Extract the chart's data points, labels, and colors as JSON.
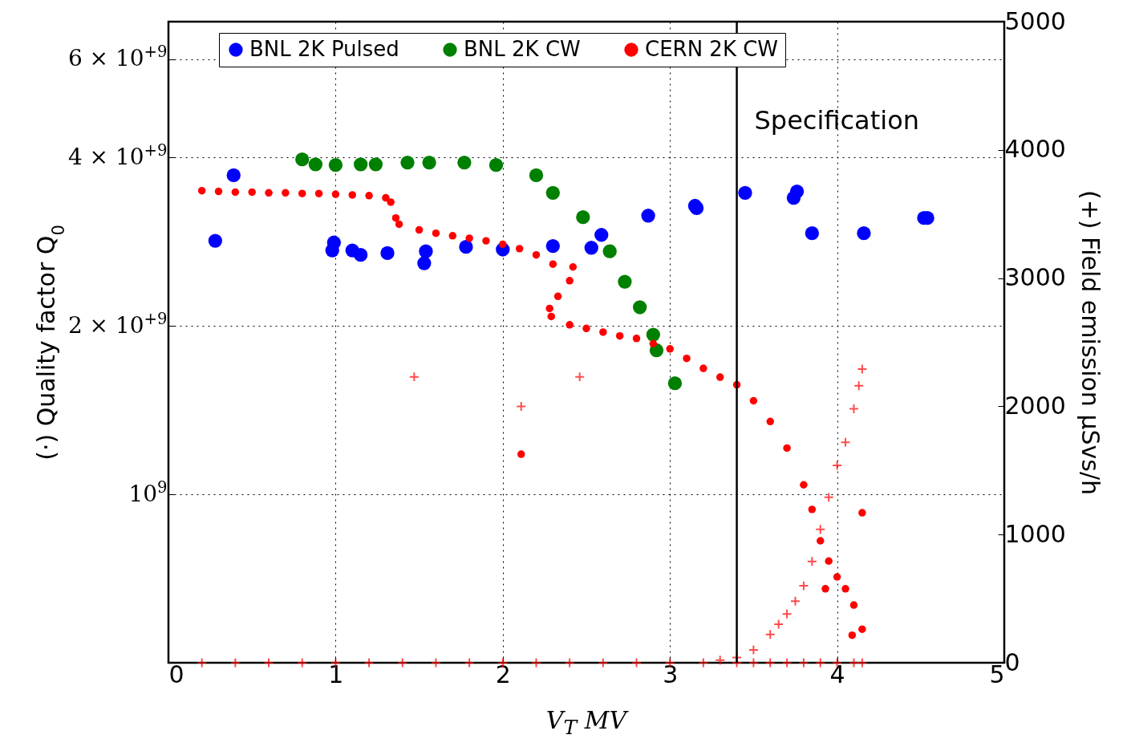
{
  "chart_data": {
    "type": "scatter",
    "xlabel": "V$_{T}$  MV",
    "ylabel": "(·) Quality factor Q$_{0}$",
    "y2label": "(+) Field emission μSvs/h",
    "log": "y",
    "grid": true,
    "legend": "top",
    "marker": "circle",
    "xlim": [
      0,
      5
    ],
    "xticks": [
      0,
      1,
      2,
      3,
      4,
      5
    ],
    "ylim": [
      500000000,
      7000000000
    ],
    "yticks": [
      {
        "value": 1000000000,
        "label": "10$^{9}$"
      },
      {
        "value": 2000000000,
        "label": "2 × 10$^{+9}$"
      },
      {
        "value": 4000000000,
        "label": "4 × 10$^{+9}$"
      },
      {
        "value": 6000000000,
        "label": "6 × 10$^{+9}$"
      }
    ],
    "y2lim": [
      0,
      5000
    ],
    "y2ticks": [
      0,
      1000,
      2000,
      3000,
      4000,
      5000
    ],
    "ref_lines": [
      {
        "axis": "x",
        "value": 3.4,
        "label": "Specification",
        "color": "#000000"
      }
    ],
    "series": [
      {
        "name": "BNL 2K Pulsed",
        "color": "#0000ff",
        "x": [
          0.28,
          0.39,
          0.98,
          0.99,
          1.1,
          1.15,
          1.31,
          1.53,
          1.54,
          1.78,
          2.0,
          2.3,
          2.53,
          2.59,
          2.87,
          3.15,
          3.16,
          3.45,
          3.74,
          3.76,
          3.85,
          4.16,
          4.52,
          4.54
        ],
        "values": [
          2840000000,
          3720000000,
          2730000000,
          2820000000,
          2730000000,
          2680000000,
          2700000000,
          2590000000,
          2720000000,
          2770000000,
          2740000000,
          2780000000,
          2760000000,
          2910000000,
          3150000000,
          3280000000,
          3250000000,
          3460000000,
          3390000000,
          3480000000,
          2930000000,
          2930000000,
          3120000000,
          3120000000
        ]
      },
      {
        "name": "BNL 2K CW",
        "color": "#008000",
        "x": [
          0.8,
          0.88,
          1.0,
          1.15,
          1.24,
          1.43,
          1.56,
          1.77,
          1.96,
          2.2,
          2.3,
          2.48,
          2.64,
          2.73,
          2.82,
          2.9,
          2.92,
          3.03
        ],
        "values": [
          3970000000,
          3890000000,
          3880000000,
          3890000000,
          3890000000,
          3920000000,
          3920000000,
          3920000000,
          3880000000,
          3720000000,
          3460000000,
          3130000000,
          2720000000,
          2400000000,
          2160000000,
          1930000000,
          1810000000,
          1580000000
        ]
      },
      {
        "name": "CERN 2K CW",
        "color": "#ff0000",
        "x": [
          0.2,
          0.3,
          0.4,
          0.5,
          0.6,
          0.7,
          0.8,
          0.9,
          1.0,
          1.1,
          1.2,
          1.3,
          1.33,
          1.36,
          1.38,
          1.5,
          1.6,
          1.7,
          1.8,
          1.9,
          2.0,
          2.1,
          2.2,
          2.3,
          2.42,
          2.4,
          2.33,
          2.28,
          2.29,
          2.4,
          2.5,
          2.6,
          2.7,
          2.8,
          2.9,
          3.0,
          3.1,
          3.2,
          3.3,
          3.4,
          3.5,
          3.6,
          3.7,
          3.8,
          3.85,
          3.9,
          3.95,
          4.0,
          4.05,
          4.1,
          4.15,
          2.11,
          4.15,
          4.09,
          3.93
        ],
        "values": [
          3490000000,
          3480000000,
          3470000000,
          3470000000,
          3460000000,
          3460000000,
          3450000000,
          3450000000,
          3440000000,
          3430000000,
          3420000000,
          3390000000,
          3330000000,
          3120000000,
          3040000000,
          2970000000,
          2930000000,
          2900000000,
          2870000000,
          2840000000,
          2800000000,
          2750000000,
          2680000000,
          2580000000,
          2550000000,
          2410000000,
          2260000000,
          2150000000,
          2080000000,
          2010000000,
          1980000000,
          1950000000,
          1920000000,
          1900000000,
          1860000000,
          1820000000,
          1750000000,
          1680000000,
          1620000000,
          1570000000,
          1470000000,
          1350000000,
          1210000000,
          1040000000,
          940000000,
          826000000,
          760000000,
          712000000,
          678000000,
          634000000,
          574000000,
          1180000000,
          927000000,
          560000000,
          678000000
        ]
      },
      {
        "color": "#ff0000",
        "axis": "y2",
        "marker": "cross",
        "x": [
          0.2,
          0.4,
          0.6,
          0.8,
          1.0,
          1.2,
          1.4,
          1.6,
          1.8,
          2.0,
          2.2,
          2.4,
          2.6,
          2.8,
          3.0,
          3.2,
          3.4,
          3.5,
          3.6,
          3.7,
          3.8,
          3.9,
          4.0,
          4.1,
          4.15,
          3.3,
          3.4,
          3.5,
          3.6,
          3.65,
          3.7,
          3.75,
          3.8,
          3.85,
          3.9,
          3.95,
          4.0,
          4.05,
          4.1,
          4.13,
          4.15,
          1.47,
          2.46,
          2.11
        ],
        "values": [
          0,
          0,
          0,
          0,
          0,
          0,
          0,
          0,
          0,
          0,
          0,
          0,
          0,
          0,
          0,
          0,
          0,
          0,
          0,
          0,
          0,
          0,
          0,
          0,
          0,
          20,
          40,
          100,
          220,
          300,
          380,
          480,
          600,
          790,
          1040,
          1290,
          1540,
          1720,
          1980,
          2160,
          2290,
          2230,
          2230,
          2000
        ]
      }
    ]
  }
}
